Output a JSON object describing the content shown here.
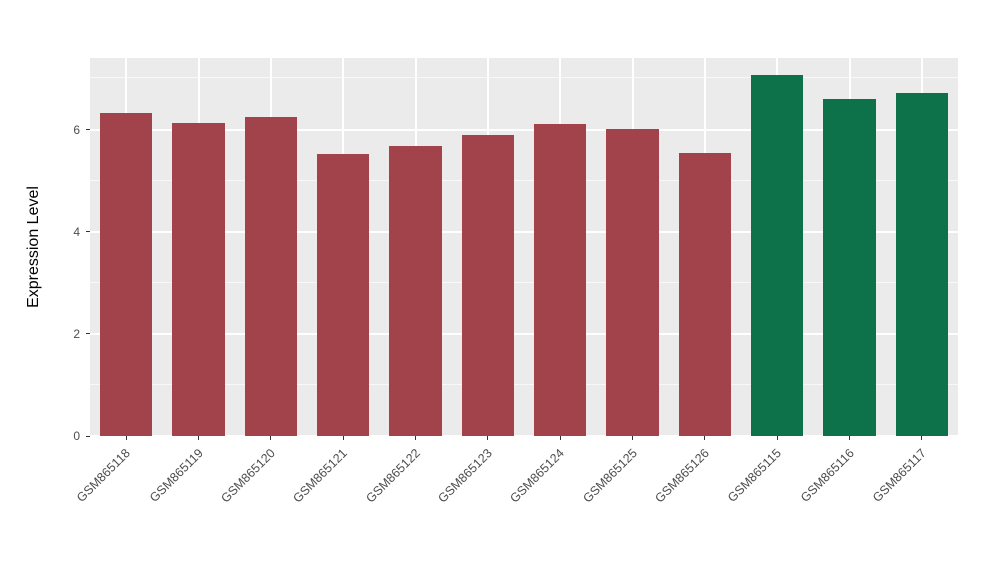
{
  "chart_data": {
    "type": "bar",
    "title": "",
    "xlabel": "",
    "ylabel": "Expression Level",
    "categories": [
      "GSM865118",
      "GSM865119",
      "GSM865120",
      "GSM865121",
      "GSM865122",
      "GSM865123",
      "GSM865124",
      "GSM865125",
      "GSM865126",
      "GSM865115",
      "GSM865116",
      "GSM865117"
    ],
    "values": [
      6.33,
      6.12,
      6.24,
      5.52,
      5.67,
      5.9,
      6.1,
      6.02,
      5.54,
      7.06,
      6.59,
      6.71
    ],
    "bar_colors": [
      "#A2434C",
      "#A2434C",
      "#A2434C",
      "#A2434C",
      "#A2434C",
      "#A2434C",
      "#A2434C",
      "#A2434C",
      "#A2434C",
      "#0D7149",
      "#0D7149",
      "#0D7149"
    ],
    "group_colors": {
      "first_group": "#A2434C",
      "second_group": "#0D7149"
    },
    "ylim": [
      0,
      7.4
    ],
    "yticks": [
      0,
      2,
      4,
      6
    ],
    "minor_yticks": [
      1,
      3,
      5,
      7
    ],
    "bar_width_fraction": 0.72,
    "panel_bg": "#EBEBEB",
    "grid_color": "#FFFFFF",
    "tick_label_color": "#4D4D4D",
    "legend": "none",
    "grid": "on"
  }
}
